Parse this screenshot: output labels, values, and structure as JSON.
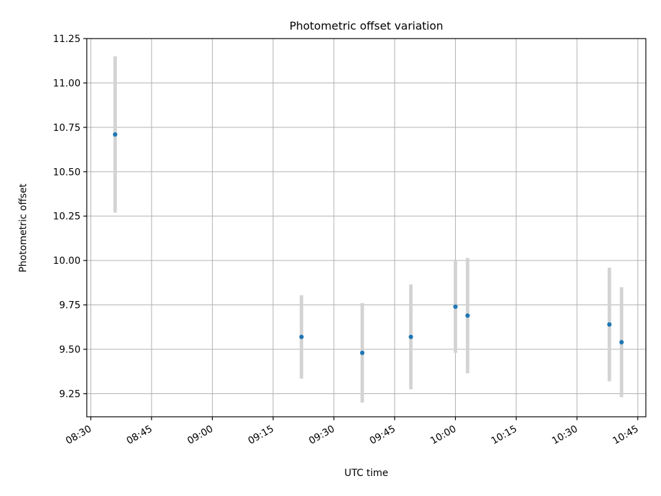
{
  "chart_data": {
    "type": "scatter",
    "title": "Photometric offset variation",
    "xlabel": "UTC time",
    "ylabel": "Photometric offset",
    "x_axis": "time",
    "xlim": [
      "08:29",
      "10:47"
    ],
    "ylim": [
      9.12,
      11.25
    ],
    "x_ticks": [
      "08:30",
      "08:45",
      "09:00",
      "09:15",
      "09:30",
      "09:45",
      "10:00",
      "10:15",
      "10:30",
      "10:45"
    ],
    "y_ticks": [
      "9.25",
      "9.50",
      "9.75",
      "10.00",
      "10.25",
      "10.50",
      "10.75",
      "11.00",
      "11.25"
    ],
    "grid": true,
    "point_color": "#1f77b4",
    "errorbar_color": "#d3d3d3",
    "points": [
      {
        "x": "08:36",
        "y": 10.71,
        "err": 0.44
      },
      {
        "x": "09:22",
        "y": 9.57,
        "err": 0.235
      },
      {
        "x": "09:37",
        "y": 9.48,
        "err": 0.28
      },
      {
        "x": "09:49",
        "y": 9.57,
        "err": 0.295
      },
      {
        "x": "10:00",
        "y": 9.74,
        "err": 0.26
      },
      {
        "x": "10:03",
        "y": 9.69,
        "err": 0.325
      },
      {
        "x": "10:38",
        "y": 9.64,
        "err": 0.32
      },
      {
        "x": "10:41",
        "y": 9.54,
        "err": 0.31
      }
    ]
  }
}
